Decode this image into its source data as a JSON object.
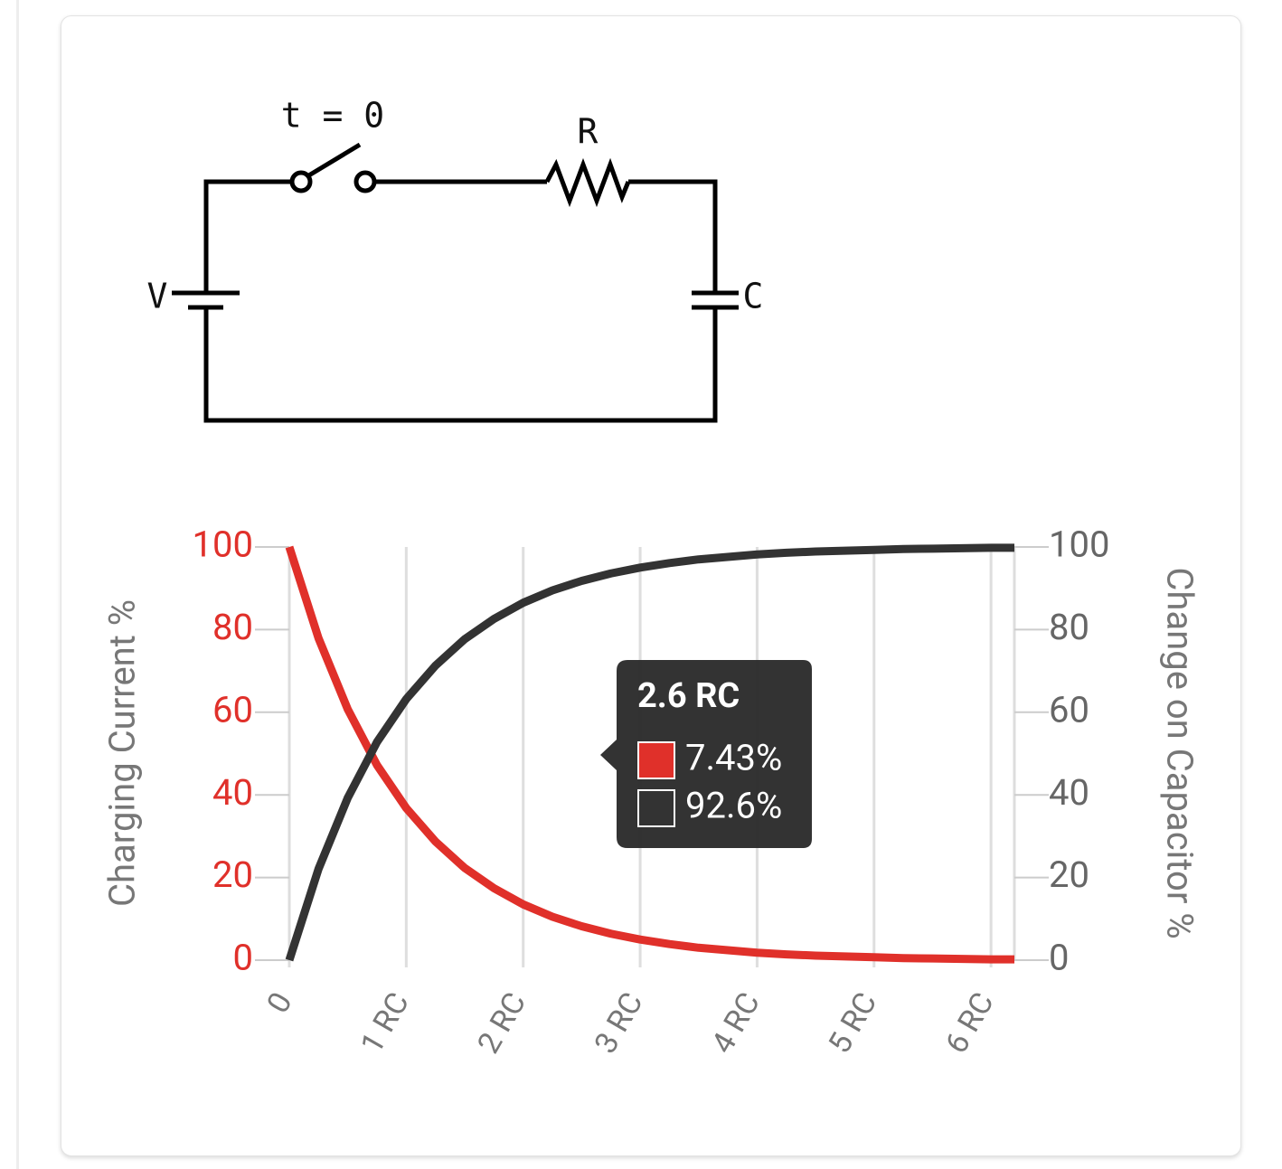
{
  "circuit": {
    "switch_label": "t = 0",
    "resistor_label": "R",
    "source_label": "V",
    "capacitor_label": "C"
  },
  "chart_data": {
    "type": "line",
    "x": [
      0,
      0.25,
      0.5,
      0.75,
      1,
      1.25,
      1.5,
      1.75,
      2,
      2.25,
      2.5,
      2.75,
      3,
      3.25,
      3.5,
      3.75,
      4,
      4.25,
      4.5,
      4.75,
      5,
      5.25,
      5.5,
      5.75,
      6,
      6.2
    ],
    "series": [
      {
        "color": "#e0302a",
        "axis": "y",
        "values": [
          100,
          77.9,
          60.7,
          47.2,
          36.8,
          28.7,
          22.3,
          17.4,
          13.5,
          10.5,
          8.2,
          6.4,
          5.0,
          3.9,
          3.0,
          2.4,
          1.8,
          1.4,
          1.1,
          0.9,
          0.7,
          0.5,
          0.4,
          0.3,
          0.2,
          0.2
        ]
      },
      {
        "color": "#333333",
        "axis": "y2",
        "values": [
          0,
          22.1,
          39.3,
          52.8,
          63.2,
          71.3,
          77.7,
          82.6,
          86.5,
          89.5,
          91.8,
          93.6,
          95.0,
          96.1,
          97.0,
          97.6,
          98.2,
          98.6,
          98.9,
          99.1,
          99.3,
          99.5,
          99.6,
          99.7,
          99.8,
          99.8
        ]
      }
    ],
    "xlim": [
      0,
      6.2
    ],
    "xticks": [
      0,
      {
        "value": 1,
        "label": "1 RC"
      },
      {
        "value": 2,
        "label": "2 RC"
      },
      {
        "value": 3,
        "label": "3 RC"
      },
      {
        "value": 4,
        "label": "4 RC"
      },
      {
        "value": 5,
        "label": "5 RC"
      },
      {
        "value": 6,
        "label": "6 RC"
      }
    ],
    "ylim": [
      0,
      100
    ],
    "yticks": [
      0,
      20,
      40,
      60,
      80,
      100
    ],
    "y2lim": [
      0,
      100
    ],
    "y2ticks": [
      0,
      20,
      40,
      60,
      80,
      100
    ],
    "ylabel": "Charging Current %",
    "y2label": "Change on Capacitor %",
    "grid": true,
    "tooltip": {
      "title": "2.6 RC",
      "lines": [
        "7.43%",
        "92.6%"
      ]
    }
  }
}
